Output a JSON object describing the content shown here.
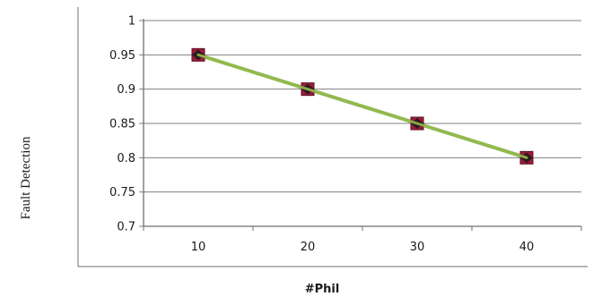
{
  "chart_data": {
    "type": "line",
    "title": "",
    "xlabel": "#Phil",
    "ylabel": "Fault Detection",
    "categories": [
      "10",
      "20",
      "30",
      "40"
    ],
    "x": [
      10,
      20,
      30,
      40
    ],
    "series": [
      {
        "values": [
          0.95,
          0.9,
          0.85,
          0.8
        ],
        "line_color": "#92b94f",
        "marker_color": "#9b1c3a",
        "marker": "square"
      }
    ],
    "ylim": [
      0.7,
      1
    ],
    "yticks": [
      "0.7",
      "0.75",
      "0.8",
      "0.85",
      "0.9",
      "0.95",
      "1"
    ],
    "grid": "horizontal",
    "legend": "none"
  }
}
